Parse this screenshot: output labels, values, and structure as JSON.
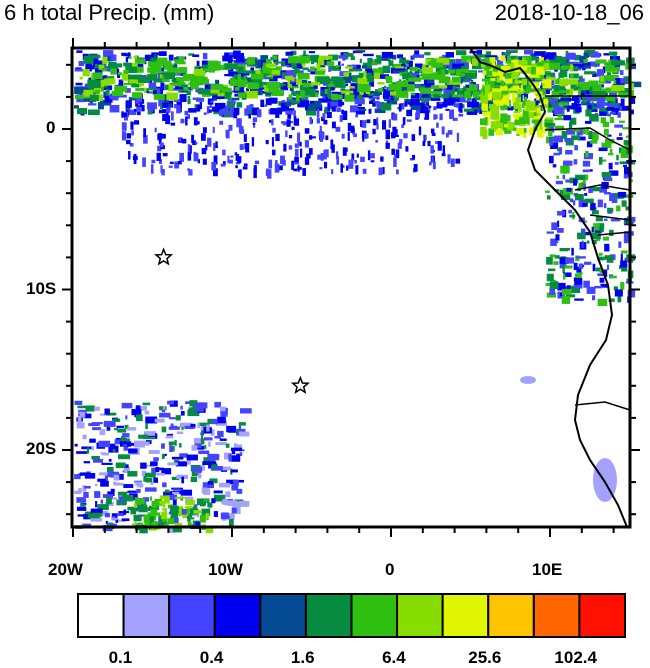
{
  "title_left": "6 h total Precip. (mm)",
  "title_right": "2018-10-18_06",
  "y_axis_labels": [
    "0",
    "10S",
    "20S"
  ],
  "x_axis_labels": [
    "20W",
    "10W",
    "0",
    "10E"
  ],
  "colorbar": {
    "colors": [
      "#ffffff",
      "#a3a3ff",
      "#4444ff",
      "#0000ee",
      "#054a95",
      "#058c41",
      "#2ebf10",
      "#88dd00",
      "#e0f500",
      "#ffc400",
      "#ff6600",
      "#ff1000"
    ],
    "labels": [
      "0.1",
      "0.4",
      "1.6",
      "6.4",
      "25.6",
      "102.4"
    ]
  },
  "markers": [
    {
      "name": "star",
      "lon": -14.3,
      "lat": -8.0
    },
    {
      "name": "star",
      "lon": -5.7,
      "lat": -16.0
    }
  ]
}
